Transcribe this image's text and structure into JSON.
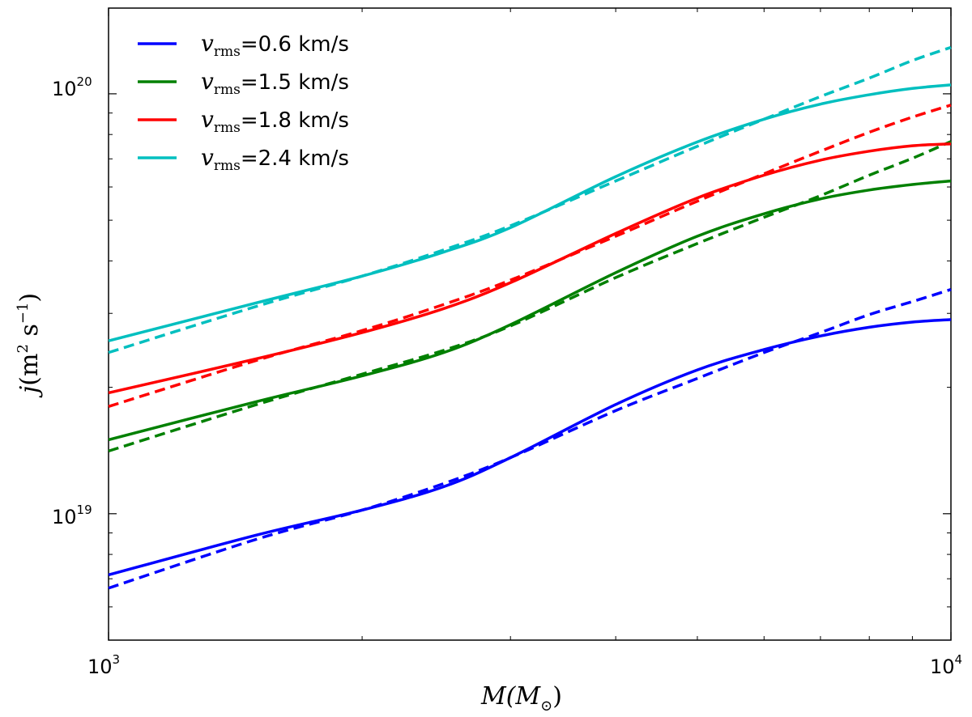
{
  "chart_data": {
    "type": "line",
    "x_scale": "log",
    "y_scale": "log",
    "xlim": [
      1000,
      10000
    ],
    "ylim": [
      5e+18,
      1.6e+20
    ],
    "xlabel_main": "M",
    "xlabel_paren": "(M",
    "xlabel_sub": "⊙",
    "xlabel_close": ")",
    "ylabel_main": "j",
    "ylabel_unit": "(m",
    "ylabel_sq": "2",
    "ylabel_s": " s",
    "ylabel_exp": "−1",
    "ylabel_close": ")",
    "x_ticks": [
      {
        "value": 1000,
        "base": "10",
        "exp": "3"
      },
      {
        "value": 10000,
        "base": "10",
        "exp": "4"
      }
    ],
    "y_ticks": [
      {
        "value": 1e+19,
        "base": "10",
        "exp": "19"
      },
      {
        "value": 1e+20,
        "base": "10",
        "exp": "20"
      }
    ],
    "legend_position": "top-left",
    "x": [
      1000,
      1500,
      2000,
      2500,
      3000,
      4000,
      5000,
      6000,
      7000,
      8000,
      9000,
      10000
    ],
    "series": [
      {
        "name": "v_rms=0.6 km/s",
        "legend_var": "v",
        "legend_sub": "rms",
        "legend_value": "=0.6 km/s",
        "color": "#0000ff",
        "solid": [
          7.15e+18,
          8.9e+18,
          1.02e+19,
          1.16e+19,
          1.36e+19,
          1.82e+19,
          2.2e+19,
          2.46e+19,
          2.65e+19,
          2.78e+19,
          2.86e+19,
          2.9e+19
        ],
        "dashed": [
          6.65e+18,
          8.7e+18,
          1.02e+19,
          1.18e+19,
          1.36e+19,
          1.76e+19,
          2.1e+19,
          2.42e+19,
          2.7e+19,
          2.98e+19,
          3.2e+19,
          3.42e+19
        ]
      },
      {
        "name": "v_rms=1.5 km/s",
        "legend_var": "v",
        "legend_sub": "rms",
        "legend_value": "=1.5 km/s",
        "color": "#008000",
        "solid": [
          1.5e+19,
          1.85e+19,
          2.13e+19,
          2.42e+19,
          2.82e+19,
          3.75e+19,
          4.58e+19,
          5.18e+19,
          5.62e+19,
          5.9e+19,
          6.08e+19,
          6.2e+19
        ],
        "dashed": [
          1.41e+19,
          1.82e+19,
          2.15e+19,
          2.45e+19,
          2.8e+19,
          3.65e+19,
          4.4e+19,
          5.08e+19,
          5.72e+19,
          6.4e+19,
          7.02e+19,
          7.7e+19
        ]
      },
      {
        "name": "v_rms=1.8 km/s",
        "legend_var": "v",
        "legend_sub": "rms",
        "legend_value": "=1.8 km/s",
        "color": "#ff0000",
        "solid": [
          1.94e+19,
          2.34e+19,
          2.7e+19,
          3.08e+19,
          3.55e+19,
          4.65e+19,
          5.65e+19,
          6.4e+19,
          6.95e+19,
          7.3e+19,
          7.52e+19,
          7.6e+19
        ],
        "dashed": [
          1.8e+19,
          2.32e+19,
          2.73e+19,
          3.15e+19,
          3.6e+19,
          4.58e+19,
          5.55e+19,
          6.45e+19,
          7.3e+19,
          8.1e+19,
          8.8e+19,
          9.4e+19
        ]
      },
      {
        "name": "v_rms=2.4 km/s",
        "legend_var": "v",
        "legend_sub": "rms",
        "legend_value": "=2.4 km/s",
        "color": "#00bfbf",
        "solid": [
          2.58e+19,
          3.18e+19,
          3.68e+19,
          4.2e+19,
          4.8e+19,
          6.35e+19,
          7.68e+19,
          8.7e+19,
          9.45e+19,
          9.95e+19,
          1.03e+20,
          1.05e+20
        ],
        "dashed": [
          2.42e+19,
          3.12e+19,
          3.68e+19,
          4.25e+19,
          4.85e+19,
          6.2e+19,
          7.5e+19,
          8.7e+19,
          9.85e+19,
          1.09e+20,
          1.2e+20,
          1.29e+20
        ]
      }
    ]
  }
}
